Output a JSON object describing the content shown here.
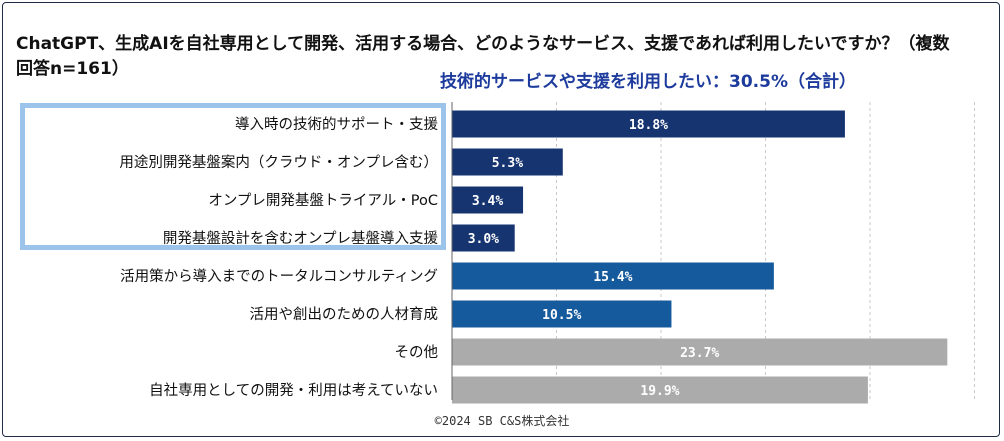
{
  "title": "ChatGPT、生成AIを自社専用として開発、活用する場合、どのようなサービス、支援であれば利用したいですか？（複数回答n=161）",
  "subtitle": "技術的サービスや支援を利用したい：30.5%（合計）",
  "copyright": "©2024 SB C&S株式会社",
  "colors": {
    "dark_navy": "#163470",
    "medium_blue": "#165a9e",
    "gray": "#ababab",
    "highlight_border": "#9cc3ea",
    "subtitle_text": "#1d3b9c"
  },
  "chart_data": {
    "type": "bar",
    "orientation": "horizontal",
    "categories": [
      "導入時の技術的サポート・支援",
      "用途別開発基盤案内（クラウド・オンプレ含む）",
      "オンプレ開発基盤トライアル・PoC",
      "開発基盤設計を含むオンプレ基盤導入支援",
      "活用策から導入までのトータルコンサルティング",
      "活用や創出のための人材育成",
      "その他",
      "自社専用としての開発・利用は考えていない"
    ],
    "values": [
      18.8,
      5.3,
      3.4,
      3.0,
      15.4,
      10.5,
      23.7,
      19.9
    ],
    "value_labels": [
      "18.8%",
      "5.3%",
      "3.4%",
      "3.0%",
      "15.4%",
      "10.5%",
      "23.7%",
      "19.9%"
    ],
    "bar_colors": [
      "#163470",
      "#163470",
      "#163470",
      "#163470",
      "#165a9e",
      "#165a9e",
      "#ababab",
      "#ababab"
    ],
    "xlim": [
      0,
      25
    ],
    "grid": true,
    "grid_step": 5,
    "legend": "none"
  }
}
